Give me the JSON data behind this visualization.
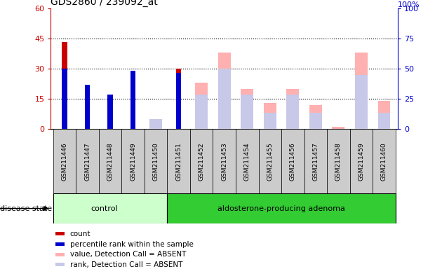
{
  "title": "GDS2860 / 239092_at",
  "samples": [
    "GSM211446",
    "GSM211447",
    "GSM211448",
    "GSM211449",
    "GSM211450",
    "GSM211451",
    "GSM211452",
    "GSM211453",
    "GSM211454",
    "GSM211455",
    "GSM211456",
    "GSM211457",
    "GSM211458",
    "GSM211459",
    "GSM211460"
  ],
  "count": [
    43,
    22,
    17,
    29,
    0,
    30,
    0,
    0,
    0,
    0,
    0,
    0,
    0,
    0,
    0
  ],
  "percentile_rank": [
    30,
    22,
    17,
    29,
    0,
    28,
    0,
    0,
    0,
    0,
    0,
    0,
    0,
    0,
    0
  ],
  "value_absent": [
    0,
    0,
    0,
    0,
    2,
    0,
    23,
    38,
    20,
    13,
    20,
    12,
    1,
    38,
    14
  ],
  "rank_absent": [
    0,
    0,
    0,
    0,
    5,
    0,
    17,
    30,
    17,
    8,
    17,
    8,
    0,
    27,
    8
  ],
  "ylim_left": [
    0,
    60
  ],
  "ylim_right": [
    0,
    100
  ],
  "yticks_left": [
    0,
    15,
    30,
    45,
    60
  ],
  "yticks_right": [
    0,
    25,
    50,
    75,
    100
  ],
  "color_count": "#cc0000",
  "color_rank": "#0000cc",
  "color_value_absent": "#ffb0b0",
  "color_rank_absent": "#c8c8e8",
  "ctrl_color_light": "#ccffcc",
  "ctrl_color_dark": "#33cc33",
  "bg_color": "#cccccc",
  "n_control": 5,
  "legend_labels": [
    "count",
    "percentile rank within the sample",
    "value, Detection Call = ABSENT",
    "rank, Detection Call = ABSENT"
  ]
}
